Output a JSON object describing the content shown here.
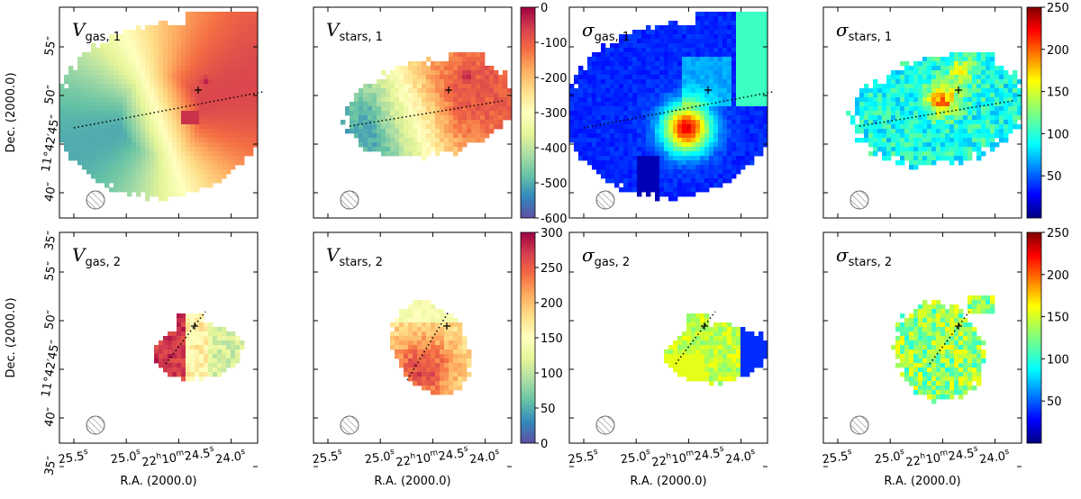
{
  "chart_data": {
    "type": "heatmap",
    "description_free": true,
    "x_axis": {
      "label": "R.A. (2000.0)",
      "ticks": [
        {
          "value": 25.5,
          "main": "25.5",
          "sup": "s"
        },
        {
          "value": 25.0,
          "main": "25.0",
          "sup": "s"
        },
        {
          "value": 24.5,
          "main": "22h10m24.5",
          "sup": "s",
          "full": [
            "22",
            "h",
            "10",
            "m",
            "24.5",
            "s"
          ]
        },
        {
          "value": 24.0,
          "main": "24.0",
          "sup": "s"
        }
      ]
    },
    "y_axis": {
      "label": "Dec. (2000.0)",
      "ticks": [
        {
          "value": 55,
          "label": "55″"
        },
        {
          "value": 50,
          "label": "50″"
        },
        {
          "value": 45,
          "label": "11°42′45″"
        },
        {
          "value": 40,
          "label": "40″"
        },
        {
          "value": 35,
          "label": "35″"
        }
      ]
    },
    "colorbars": [
      {
        "row": 1,
        "group": "velocity",
        "range": [
          -600,
          0
        ],
        "ticks": [
          "0",
          "-100",
          "-200",
          "-300",
          "-400",
          "-500",
          "-600"
        ],
        "colormap": "Spectral_r"
      },
      {
        "row": 1,
        "group": "dispersion",
        "range": [
          0,
          250
        ],
        "ticks": [
          "250",
          "200",
          "150",
          "100",
          "50"
        ],
        "colormap": "jet"
      },
      {
        "row": 2,
        "group": "velocity",
        "range": [
          0,
          300
        ],
        "ticks": [
          "300",
          "250",
          "200",
          "150",
          "100",
          "50",
          "0"
        ],
        "colormap": "Spectral_r"
      },
      {
        "row": 2,
        "group": "dispersion",
        "range": [
          0,
          250
        ],
        "ticks": [
          "250",
          "200",
          "150",
          "100",
          "50"
        ],
        "colormap": "jet"
      }
    ],
    "panels": [
      {
        "id": "vgas1",
        "symbol": "V",
        "sub": "gas, 1",
        "quantity": "velocity",
        "component": 1
      },
      {
        "id": "vstars1",
        "symbol": "V",
        "sub": "stars, 1",
        "quantity": "velocity",
        "component": 1
      },
      {
        "id": "sgas1",
        "symbol": "σ",
        "sub": "gas, 1",
        "quantity": "dispersion",
        "component": 1
      },
      {
        "id": "sstars1",
        "symbol": "σ",
        "sub": "stars, 1",
        "quantity": "dispersion",
        "component": 1
      },
      {
        "id": "vgas2",
        "symbol": "V",
        "sub": "gas, 2",
        "quantity": "velocity",
        "component": 2
      },
      {
        "id": "vstars2",
        "symbol": "V",
        "sub": "stars, 2",
        "quantity": "velocity",
        "component": 2
      },
      {
        "id": "sgas2",
        "symbol": "σ",
        "sub": "gas, 2",
        "quantity": "dispersion",
        "component": 2
      },
      {
        "id": "sstars2",
        "symbol": "σ",
        "sub": "stars, 2",
        "quantity": "dispersion",
        "component": 2
      }
    ],
    "position_angle_line": "dotted",
    "beam": "hatched circle"
  }
}
